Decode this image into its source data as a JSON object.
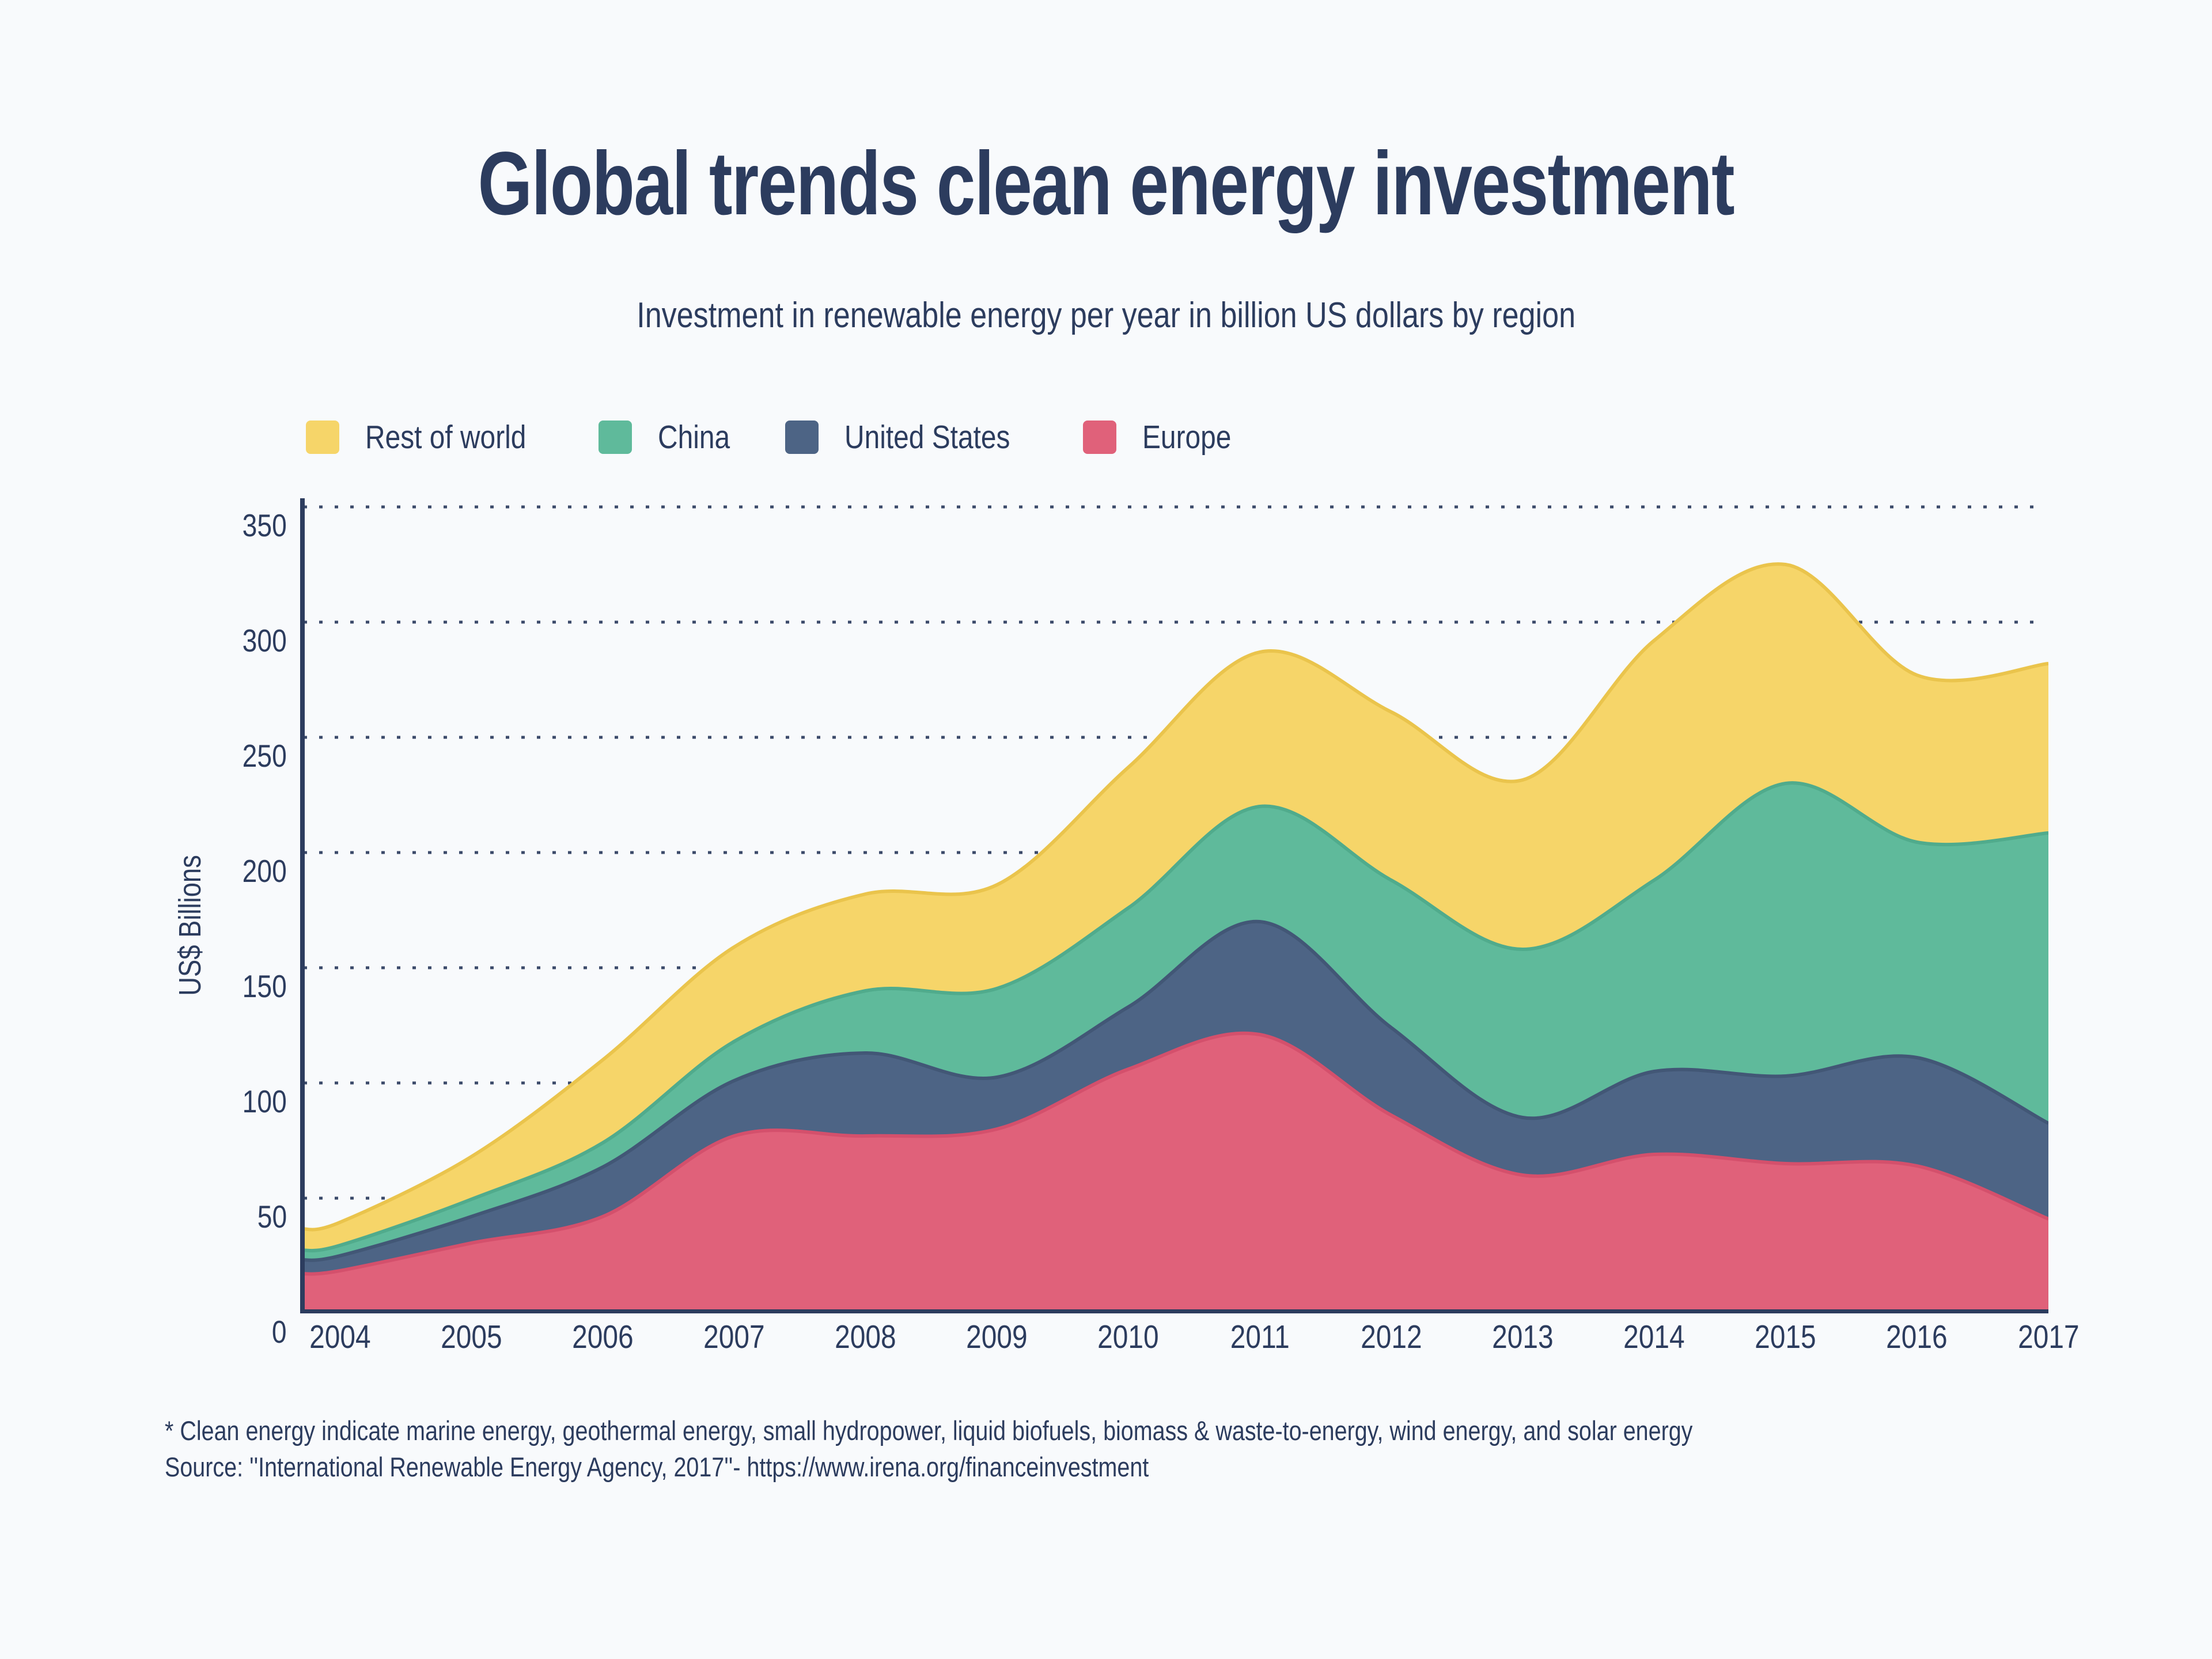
{
  "title": "Global trends clean energy investment",
  "subtitle": "Investment in renewable energy per year in billion US dollars by region",
  "legend": {
    "items": [
      {
        "label": "Rest of world",
        "color": "#f6d569"
      },
      {
        "label": "China",
        "color": "#5fba9b"
      },
      {
        "label": "United States",
        "color": "#4d6485"
      },
      {
        "label": "Europe",
        "color": "#e0617a"
      }
    ]
  },
  "footnotes": [
    "* Clean energy indicate marine energy, geothermal energy, small hydropower, liquid biofuels, biomass & waste-to-energy, wind energy, and solar energy",
    "Source: ''International Renewable Energy Agency, 2017''- https://www.irena.org/financeinvestment"
  ],
  "colors": {
    "background": "#f8fafc",
    "text_navy": "#2c3c5e",
    "axis": "#2c3c5e",
    "gridline": "#2c3c5e"
  },
  "chart_data": {
    "type": "area",
    "stacked": true,
    "title": "Global trends clean energy investment",
    "subtitle": "Investment in renewable energy per year in billion US dollars by region",
    "xlabel": "",
    "ylabel": "US$ Billions",
    "x": [
      2004,
      2005,
      2006,
      2007,
      2008,
      2009,
      2010,
      2011,
      2012,
      2013,
      2014,
      2015,
      2016,
      2017
    ],
    "series": [
      {
        "name": "Europe",
        "color": "#e0617a",
        "edge_color": "#d4506c",
        "values": [
          18.5,
          30.5,
          42,
          77,
          77,
          80,
          106,
          121,
          86,
          60,
          69,
          65,
          64,
          41
        ]
      },
      {
        "name": "United States",
        "color": "#4d6485",
        "edge_color": "#425776",
        "values": [
          6.5,
          11.5,
          21.5,
          24,
          36,
          22.5,
          27,
          49,
          38,
          25,
          36,
          38,
          47,
          41.5
        ]
      },
      {
        "name": "China",
        "color": "#5fba9b",
        "edge_color": "#50ab8c",
        "values": [
          4.5,
          7.5,
          10.5,
          17,
          27,
          38.5,
          43,
          50,
          64,
          73,
          83,
          127,
          93.5,
          126
        ]
      },
      {
        "name": "Rest of world",
        "color": "#f6d569",
        "edge_color": "#eac44c",
        "values": [
          10,
          18.5,
          36,
          41,
          42,
          45,
          61,
          67,
          73,
          73.5,
          104,
          95,
          72.5,
          73.5
        ]
      }
    ],
    "stacked_totals": [
      39.5,
      68,
      110,
      159,
      182,
      186,
      237,
      287,
      261,
      231.5,
      292,
      325,
      277,
      282
    ],
    "ylim": [
      0,
      360
    ],
    "yticks": [
      0,
      50,
      100,
      150,
      200,
      250,
      300,
      350
    ],
    "grid": "dotted horizontal",
    "legend_position": "top-left"
  }
}
